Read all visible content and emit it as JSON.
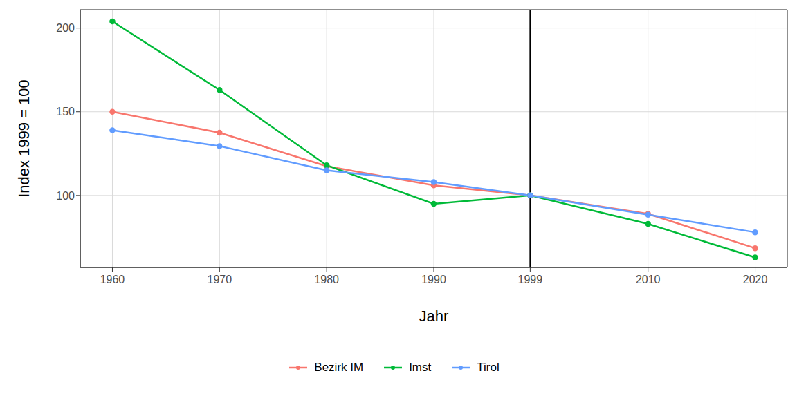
{
  "chart_data": {
    "type": "line",
    "x_label": "Jahr",
    "y_label": "Index 1999 = 100",
    "x": [
      1960,
      1970,
      1980,
      1990,
      1999,
      2010,
      2020
    ],
    "xlim": [
      1957,
      2023
    ],
    "xticks": [
      1960,
      1970,
      1980,
      1990,
      1999,
      2010,
      2020
    ],
    "ylim": [
      57,
      211
    ],
    "yticks": [
      100,
      150,
      200
    ],
    "grid": true,
    "legend": "bottom",
    "vline": 1999,
    "marker": "circle",
    "series": [
      {
        "name": "Bezirk IM",
        "color": "#F8766D",
        "values": [
          150,
          137.5,
          117.5,
          106,
          100,
          89,
          68.5
        ]
      },
      {
        "name": "Imst",
        "color": "#00BA38",
        "values": [
          204,
          163,
          118,
          95,
          100,
          83,
          63
        ]
      },
      {
        "name": "Tirol",
        "color": "#619CFF",
        "values": [
          139,
          129.5,
          115,
          108,
          100,
          88.5,
          78
        ]
      }
    ]
  }
}
